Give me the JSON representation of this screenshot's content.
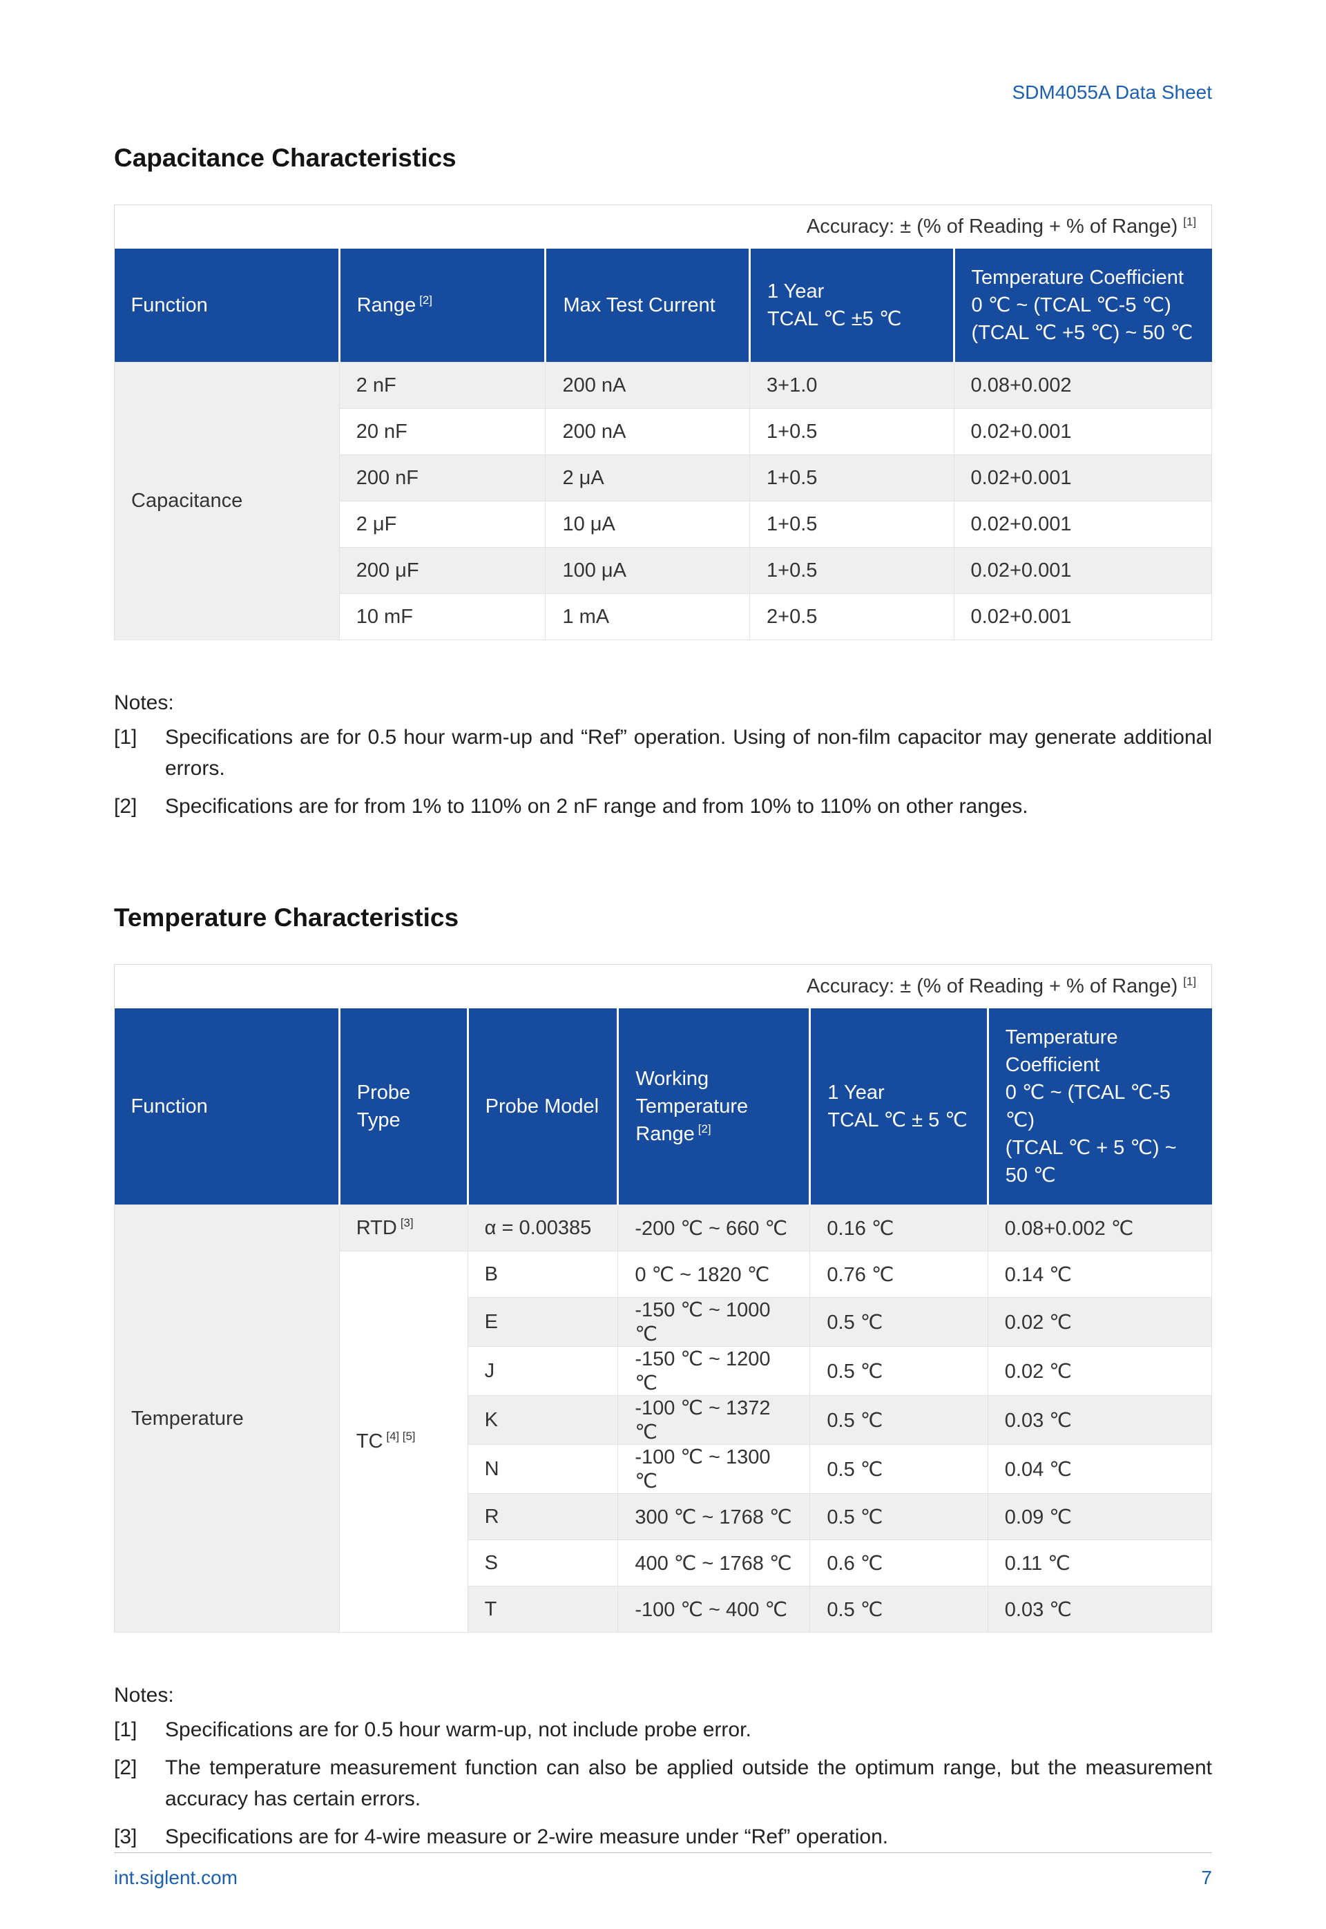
{
  "page": {
    "header": "SDM4055A Data Sheet"
  },
  "colors": {
    "accent": "#1c5fae",
    "header-bg": "#164b9d",
    "row-alt": "#efefef",
    "border": "#e2e2e2"
  },
  "capacitance": {
    "title": "Capacitance Characteristics",
    "accuracy": {
      "text": "Accuracy: ± (% of Reading + % of Range) ",
      "sup": "[1]"
    },
    "columns": [
      {
        "lines": [
          "Function"
        ]
      },
      {
        "lines": [
          "Range"
        ],
        "sup": "[2]"
      },
      {
        "lines": [
          "Max Test Current"
        ]
      },
      {
        "lines": [
          "1 Year",
          "TCAL ℃ ±5 ℃"
        ]
      },
      {
        "lines": [
          "Temperature Coefficient",
          "0 ℃ ~ (TCAL ℃-5 ℃)",
          "(TCAL ℃ +5 ℃) ~ 50 ℃"
        ]
      }
    ],
    "body": [
      {
        "cells": [
          {
            "t": "Capacitance",
            "rs": 6,
            "cls": "fn-cell",
            "name": "function-cell"
          },
          {
            "t": "2 nF"
          },
          {
            "t": "200 nA"
          },
          {
            "t": "3+1.0"
          },
          {
            "t": "0.08+0.002"
          }
        ]
      },
      {
        "cells": [
          {
            "t": "20 nF"
          },
          {
            "t": "200 nA"
          },
          {
            "t": "1+0.5"
          },
          {
            "t": "0.02+0.001"
          }
        ]
      },
      {
        "cells": [
          {
            "t": "200 nF"
          },
          {
            "t": "2 μA"
          },
          {
            "t": "1+0.5"
          },
          {
            "t": "0.02+0.001"
          }
        ]
      },
      {
        "cells": [
          {
            "t": "2 μF"
          },
          {
            "t": "10 μA"
          },
          {
            "t": "1+0.5"
          },
          {
            "t": "0.02+0.001"
          }
        ]
      },
      {
        "cells": [
          {
            "t": "200 μF"
          },
          {
            "t": "100 μA"
          },
          {
            "t": "1+0.5"
          },
          {
            "t": "0.02+0.001"
          }
        ]
      },
      {
        "cells": [
          {
            "t": "10 mF"
          },
          {
            "t": "1 mA"
          },
          {
            "t": "2+0.5"
          },
          {
            "t": "0.02+0.001"
          }
        ]
      }
    ],
    "notes_label": "Notes:",
    "notes": [
      {
        "marker": "[1]",
        "text": "Specifications are for 0.5 hour warm-up and “Ref” operation. Using of non-film capacitor may generate additional errors."
      },
      {
        "marker": "[2]",
        "text": "Specifications are for from 1% to 110% on 2 nF range and from 10% to 110% on other ranges."
      }
    ]
  },
  "temperature": {
    "title": "Temperature Characteristics",
    "accuracy": {
      "text": "Accuracy: ± (% of Reading + % of Range) ",
      "sup": "[1]"
    },
    "columns": [
      {
        "lines": [
          "Function"
        ]
      },
      {
        "lines": [
          "Probe Type"
        ]
      },
      {
        "lines": [
          "Probe Model"
        ]
      },
      {
        "lines": [
          "Working",
          "Temperature",
          "Range"
        ],
        "sup": "[2]"
      },
      {
        "lines": [
          "1 Year",
          "TCAL ℃ ± 5 ℃"
        ]
      },
      {
        "lines": [
          "Temperature",
          "Coefficient",
          "0 ℃ ~ (TCAL ℃-5 ℃)",
          "(TCAL ℃ + 5 ℃) ~ 50 ℃"
        ]
      }
    ],
    "body": [
      {
        "cells": [
          {
            "t": "Temperature",
            "rs": 9,
            "cls": "fn-cell",
            "name": "function-cell"
          },
          {
            "t": "RTD",
            "sup": "[3]"
          },
          {
            "t": "α = 0.00385"
          },
          {
            "t": "-200 ℃ ~ 660 ℃"
          },
          {
            "t": "0.16 ℃"
          },
          {
            "t": "0.08+0.002 ℃"
          }
        ]
      },
      {
        "cells": [
          {
            "t": "TC",
            "sup": "[4] [5]",
            "rs": 8,
            "cls": "probe-cell",
            "name": "probe-type-cell"
          },
          {
            "t": "B"
          },
          {
            "t": "0 ℃ ~ 1820 ℃"
          },
          {
            "t": "0.76 ℃"
          },
          {
            "t": "0.14 ℃"
          }
        ]
      },
      {
        "cells": [
          {
            "t": "E"
          },
          {
            "t": "-150 ℃ ~ 1000 ℃"
          },
          {
            "t": "0.5 ℃"
          },
          {
            "t": "0.02 ℃"
          }
        ]
      },
      {
        "cells": [
          {
            "t": "J"
          },
          {
            "t": "-150 ℃ ~ 1200 ℃"
          },
          {
            "t": "0.5 ℃"
          },
          {
            "t": "0.02 ℃"
          }
        ]
      },
      {
        "cells": [
          {
            "t": "K"
          },
          {
            "t": "-100 ℃ ~ 1372 ℃"
          },
          {
            "t": "0.5 ℃"
          },
          {
            "t": "0.03 ℃"
          }
        ]
      },
      {
        "cells": [
          {
            "t": "N"
          },
          {
            "t": "-100 ℃ ~ 1300 ℃"
          },
          {
            "t": "0.5 ℃"
          },
          {
            "t": "0.04 ℃"
          }
        ]
      },
      {
        "cells": [
          {
            "t": "R"
          },
          {
            "t": "300 ℃ ~ 1768 ℃"
          },
          {
            "t": "0.5 ℃"
          },
          {
            "t": "0.09 ℃"
          }
        ]
      },
      {
        "cells": [
          {
            "t": "S"
          },
          {
            "t": "400 ℃ ~ 1768 ℃"
          },
          {
            "t": "0.6 ℃"
          },
          {
            "t": "0.11 ℃"
          }
        ]
      },
      {
        "cells": [
          {
            "t": "T"
          },
          {
            "t": "-100 ℃ ~ 400 ℃"
          },
          {
            "t": "0.5 ℃"
          },
          {
            "t": "0.03 ℃"
          }
        ]
      }
    ],
    "notes_label": "Notes:",
    "notes": [
      {
        "marker": "[1]",
        "text": "Specifications are for 0.5 hour warm-up, not include probe error."
      },
      {
        "marker": "[2]",
        "text": "The temperature measurement function can also be applied outside the optimum range, but the measurement accuracy has certain errors."
      },
      {
        "marker": "[3]",
        "text": "Specifications are for 4-wire measure or 2-wire measure under “Ref” operation."
      }
    ]
  },
  "footer": {
    "site": "int.siglent.com",
    "page_number": "7"
  }
}
